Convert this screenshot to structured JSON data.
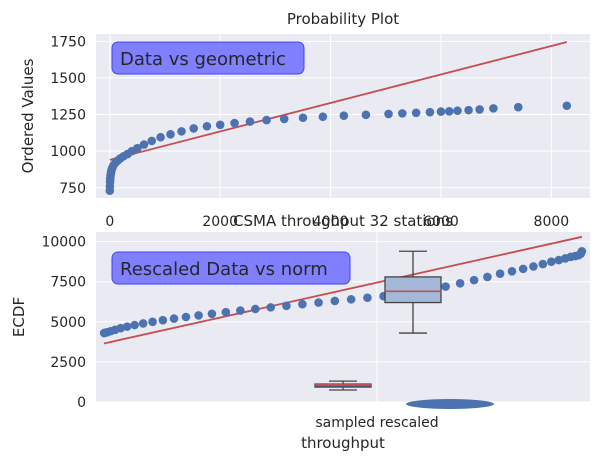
{
  "chart_data": [
    {
      "type": "scatter",
      "title": "Probability Plot",
      "ylabel": "Ordered Values",
      "xlabel": "",
      "annotation": "Data vs geometric",
      "x_ticks": [
        "0",
        "2000",
        "4000",
        "6000",
        "8000"
      ],
      "y_ticks": [
        "750",
        "1000",
        "1250",
        "1500",
        "1750"
      ],
      "xlim": [
        -250,
        8700
      ],
      "ylim": [
        680,
        1800
      ],
      "grid": true,
      "points_x": [
        0,
        2,
        5,
        8,
        12,
        18,
        25,
        35,
        50,
        70,
        100,
        140,
        190,
        250,
        320,
        400,
        500,
        620,
        760,
        920,
        1100,
        1300,
        1520,
        1760,
        2000,
        2260,
        2540,
        2840,
        3160,
        3500,
        3860,
        4240,
        4640,
        5050,
        5300,
        5550,
        5800,
        6000,
        6150,
        6300,
        6500,
        6700,
        6950,
        7400,
        8280
      ],
      "points_y": [
        730,
        760,
        790,
        810,
        830,
        845,
        860,
        875,
        890,
        905,
        920,
        935,
        950,
        965,
        980,
        1000,
        1020,
        1045,
        1070,
        1095,
        1115,
        1135,
        1155,
        1170,
        1180,
        1192,
        1202,
        1212,
        1220,
        1228,
        1235,
        1242,
        1248,
        1254,
        1258,
        1262,
        1266,
        1270,
        1272,
        1276,
        1280,
        1285,
        1292,
        1300,
        1310
      ],
      "fit_line": {
        "x": [
          0,
          8280
        ],
        "y": [
          940,
          1745
        ],
        "color": "#c44e52"
      },
      "point_color": "#4c72b0"
    },
    {
      "type": "scatter",
      "title": "CSMA throughput 32 stations",
      "ylabel": "ECDF",
      "xlabel": "throughput",
      "annotation": "Rescaled Data vs norm",
      "x_ticks": [
        "sampled rescaled"
      ],
      "y_ticks": [
        "0",
        "2500",
        "5000",
        "7500",
        "10000"
      ],
      "ylim": [
        0,
        10600
      ],
      "grid": true,
      "points_y": [
        4300,
        4320,
        4350,
        4420,
        4500,
        4600,
        4700,
        4800,
        4900,
        5000,
        5100,
        5200,
        5300,
        5400,
        5500,
        5600,
        5700,
        5800,
        5900,
        6000,
        6100,
        6200,
        6300,
        6400,
        6500,
        6600,
        6700,
        6800,
        7000,
        7200,
        7400,
        7600,
        7800,
        8000,
        8150,
        8300,
        8450,
        8600,
        8750,
        8850,
        8950,
        9050,
        9100,
        9150,
        9250,
        9400
      ],
      "fit_line": {
        "y": [
          3650,
          10300
        ],
        "color": "#c44e52"
      },
      "boxplots": [
        {
          "name": "sampled",
          "q1": 1040,
          "median": 1080,
          "q3": 1120,
          "whisker_low": 750,
          "whisker_high": 1300,
          "color": "#4c72b0"
        },
        {
          "name": "rescaled",
          "q1": 6200,
          "median": 6900,
          "q3": 7800,
          "whisker_low": 4300,
          "whisker_high": 9400,
          "color": "#a4b8d8"
        }
      ],
      "point_color": "#4c72b0"
    }
  ]
}
